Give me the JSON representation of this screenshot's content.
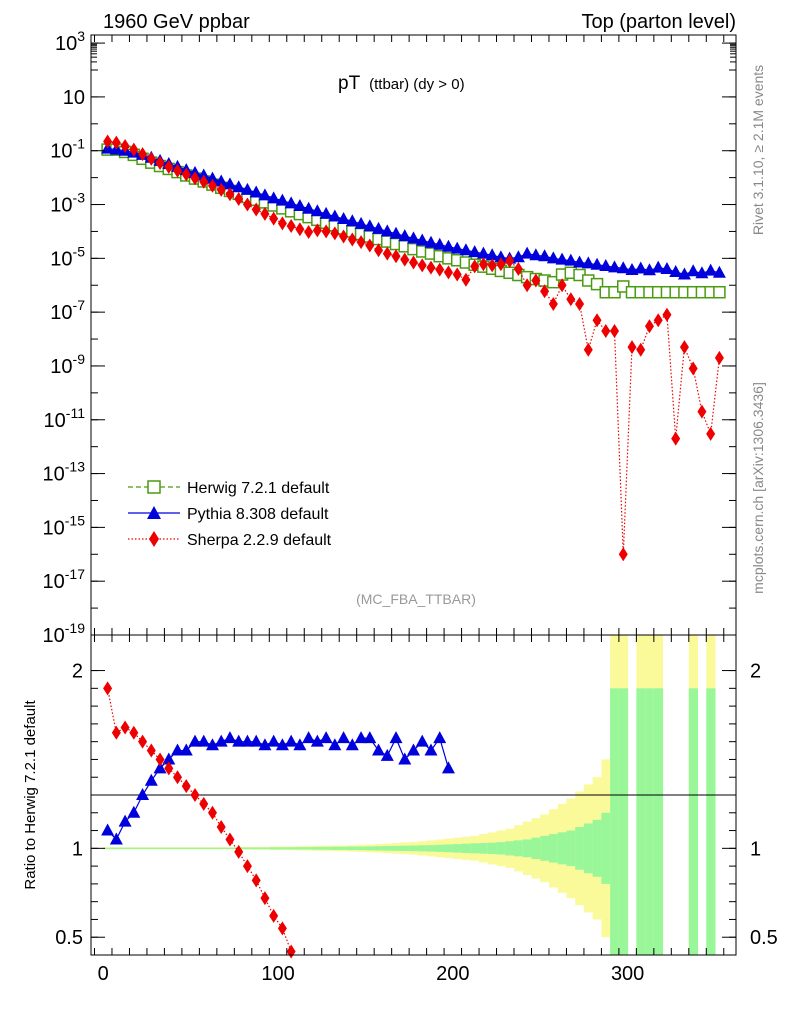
{
  "header": {
    "left": "1960 GeV ppbar",
    "right": "Top (parton level)"
  },
  "side_labels": {
    "rivet": "Rivet 3.1.10, ≥ 2.1M events",
    "mcplots": "mcplots.cern.ch [arXiv:1306.3436]"
  },
  "analysis_tag": "(MC_FBA_TTBAR)",
  "colors": {
    "herwig": "#4a9a12",
    "pythia": "#0000dd",
    "sherpa": "#ee0000",
    "band_inner": "#99f799",
    "band_outer": "#fafa9b"
  },
  "chart_data": [
    {
      "type": "line",
      "title": "pT (ttbar) (dy > 0)",
      "title_main": "pT",
      "title_sub": "(ttbar) (dy > 0)",
      "xlabel": "",
      "ylabel": "",
      "ylog": true,
      "xlim": [
        -7,
        362
      ],
      "ylim": [
        1e-19,
        2000
      ],
      "y_ticks": [
        "10^3",
        "10",
        "10^-1",
        "10^-3",
        "10^-5",
        "10^-7",
        "10^-9",
        "10^-11",
        "10^-13",
        "10^-15",
        "10^-17",
        "10^-19"
      ],
      "legend": "bottom-left",
      "series": [
        {
          "name": "Herwig 7.2.1 default",
          "x": [
            2.5,
            7.5,
            12.5,
            17.5,
            22.5,
            27.5,
            32.5,
            37.5,
            42.5,
            47.5,
            52.5,
            57.5,
            62.5,
            67.5,
            72.5,
            77.5,
            82.5,
            87.5,
            92.5,
            97.5,
            102.5,
            107.5,
            112.5,
            117.5,
            122.5,
            127.5,
            132.5,
            137.5,
            142.5,
            147.5,
            152.5,
            157.5,
            162.5,
            167.5,
            172.5,
            177.5,
            182.5,
            187.5,
            192.5,
            197.5,
            202.5,
            207.5,
            212.5,
            217.5,
            222.5,
            227.5,
            232.5,
            237.5,
            242.5,
            247.5,
            252.5,
            257.5,
            262.5,
            267.5,
            272.5,
            277.5,
            282.5,
            287.5,
            292.5,
            297.5,
            302.5,
            307.5,
            312.5,
            317.5,
            322.5,
            327.5,
            332.5,
            337.5,
            342.5,
            347.5,
            352.5
          ],
          "values": [
            0.11,
            0.11,
            0.09,
            0.07,
            0.05,
            0.036,
            0.027,
            0.021,
            0.016,
            0.012,
            0.0092,
            0.0072,
            0.0055,
            0.0042,
            0.0032,
            0.0025,
            0.0019,
            0.0015,
            0.0012,
            0.00092,
            0.00072,
            0.00056,
            0.00044,
            0.00034,
            0.00027,
            0.00021,
            0.00017,
            0.00013,
            0.0001,
            8e-05,
            6.5e-05,
            5.2e-05,
            4.2e-05,
            3.4e-05,
            2.8e-05,
            2.2e-05,
            1.8e-05,
            1.5e-05,
            1.2e-05,
            1e-05,
            8.5e-06,
            7e-06,
            5.8e-06,
            4.9e-06,
            4.1e-06,
            3.4e-06,
            2.9e-06,
            2.4e-06,
            2e-06,
            1.7e-06,
            1.5e-06,
            1.3e-06,
            2.5e-06,
            2.9e-06,
            2.4e-06,
            1.5e-06,
            1.1e-06,
            5.5e-07,
            5.5e-07,
            9e-07,
            5.5e-07,
            5.5e-07,
            5.5e-07,
            5.5e-07,
            5.5e-07,
            5.5e-07,
            5.5e-07,
            5.5e-07,
            5.5e-07,
            5.5e-07,
            5.5e-07
          ]
        },
        {
          "name": "Pythia 8.308 default",
          "x": [
            2.5,
            7.5,
            12.5,
            17.5,
            22.5,
            27.5,
            32.5,
            37.5,
            42.5,
            47.5,
            52.5,
            57.5,
            62.5,
            67.5,
            72.5,
            77.5,
            82.5,
            87.5,
            92.5,
            97.5,
            102.5,
            107.5,
            112.5,
            117.5,
            122.5,
            127.5,
            132.5,
            137.5,
            142.5,
            147.5,
            152.5,
            157.5,
            162.5,
            167.5,
            172.5,
            177.5,
            182.5,
            187.5,
            192.5,
            197.5,
            202.5,
            207.5,
            212.5,
            217.5,
            222.5,
            227.5,
            232.5,
            237.5,
            242.5,
            247.5,
            252.5,
            257.5,
            262.5,
            267.5,
            272.5,
            277.5,
            282.5,
            287.5,
            292.5,
            297.5,
            302.5,
            307.5,
            312.5,
            317.5,
            322.5,
            327.5,
            332.5,
            337.5,
            342.5,
            347.5,
            352.5
          ],
          "values": [
            0.12,
            0.11,
            0.1,
            0.085,
            0.07,
            0.055,
            0.042,
            0.032,
            0.025,
            0.019,
            0.015,
            0.012,
            0.0092,
            0.0072,
            0.0056,
            0.0044,
            0.0035,
            0.0028,
            0.0022,
            0.0017,
            0.0014,
            0.0011,
            0.00088,
            0.0007,
            0.00056,
            0.00045,
            0.00036,
            0.00029,
            0.00024,
            0.00019,
            0.000155,
            0.000125,
            0.0001,
            8.2e-05,
            6.7e-05,
            5.5e-05,
            4.6e-05,
            3.8e-05,
            3.2e-05,
            2.7e-05,
            2.3e-05,
            2e-05,
            1.7e-05,
            1.5e-05,
            1.3e-05,
            1.1e-05,
            9.8e-06,
            1.1e-05,
            1.5e-05,
            1.3e-05,
            1.2e-05,
            1e-05,
            9e-06,
            8.2e-06,
            7e-06,
            6.5e-06,
            5.8e-06,
            5.2e-06,
            4.6e-06,
            4.3e-06,
            3.7e-06,
            4.2e-06,
            3.6e-06,
            4.5e-06,
            4e-06,
            3.1e-06,
            2.5e-06,
            3.3e-06,
            2.8e-06,
            3.5e-06,
            2.9e-06
          ]
        },
        {
          "name": "Sherpa 2.2.9 default",
          "x": [
            2.5,
            7.5,
            12.5,
            17.5,
            22.5,
            27.5,
            32.5,
            37.5,
            42.5,
            47.5,
            52.5,
            57.5,
            62.5,
            67.5,
            72.5,
            77.5,
            82.5,
            87.5,
            92.5,
            97.5,
            102.5,
            107.5,
            112.5,
            117.5,
            122.5,
            127.5,
            132.5,
            137.5,
            142.5,
            147.5,
            152.5,
            157.5,
            162.5,
            167.5,
            172.5,
            177.5,
            182.5,
            187.5,
            192.5,
            197.5,
            202.5,
            207.5,
            212.5,
            217.5,
            222.5,
            227.5,
            232.5,
            237.5,
            242.5,
            247.5,
            252.5,
            257.5,
            262.5,
            267.5,
            272.5,
            277.5,
            282.5,
            287.5,
            292.5,
            297.5,
            302.5,
            307.5,
            312.5,
            317.5,
            322.5,
            327.5,
            332.5,
            337.5,
            342.5,
            347.5,
            352.5
          ],
          "values": [
            0.22,
            0.2,
            0.15,
            0.11,
            0.075,
            0.05,
            0.035,
            0.025,
            0.018,
            0.013,
            0.0095,
            0.007,
            0.005,
            0.0035,
            0.0024,
            0.0016,
            0.001,
            0.00065,
            0.00045,
            0.0003,
            0.0002,
            0.00016,
            0.00012,
            9.5e-05,
            0.00011,
            0.0001,
            8.5e-05,
            6.5e-05,
            5e-05,
            4e-05,
            3e-05,
            2e-05,
            1.5e-05,
            1.2e-05,
            9e-06,
            7e-06,
            5.5e-06,
            4.5e-06,
            3.8e-06,
            3e-06,
            2.5e-06,
            1.6e-06,
            5e-06,
            6e-06,
            5.5e-06,
            6e-06,
            8e-06,
            4e-06,
            1e-06,
            1.5e-06,
            6e-07,
            2e-07,
            1e-06,
            3e-07,
            2e-07,
            4e-09,
            5e-08,
            2e-08,
            2e-08,
            1e-16,
            5e-09,
            4e-09,
            3e-08,
            5e-08,
            8e-08,
            2e-12,
            5e-09,
            8e-10,
            2e-11,
            3e-12,
            2e-09
          ]
        }
      ]
    },
    {
      "type": "line",
      "ylabel": "Ratio to Herwig 7.2.1 default",
      "xlabel": "",
      "xlim": [
        -7,
        362
      ],
      "ylim": [
        0.4,
        2.2
      ],
      "y_ticks": [
        "0.5",
        "1",
        "2"
      ],
      "x_ticks": [
        "0",
        "100",
        "200",
        "300"
      ],
      "band_x": [
        2.5,
        7.5,
        12.5,
        17.5,
        22.5,
        27.5,
        32.5,
        37.5,
        42.5,
        47.5,
        52.5,
        57.5,
        62.5,
        67.5,
        72.5,
        77.5,
        82.5,
        87.5,
        92.5,
        97.5,
        102.5,
        107.5,
        112.5,
        117.5,
        122.5,
        127.5,
        132.5,
        137.5,
        142.5,
        147.5,
        152.5,
        157.5,
        162.5,
        167.5,
        172.5,
        177.5,
        182.5,
        187.5,
        192.5,
        197.5,
        202.5,
        207.5,
        212.5,
        217.5,
        222.5,
        227.5,
        232.5,
        237.5,
        242.5,
        247.5,
        252.5,
        257.5,
        262.5,
        267.5,
        272.5,
        277.5,
        282.5,
        287.5,
        292.5,
        297.5,
        302.5,
        307.5,
        312.5,
        317.5,
        322.5,
        327.5,
        332.5,
        337.5,
        342.5,
        347.5,
        352.5
      ],
      "band_inner": [
        0.004,
        0.004,
        0.004,
        0.004,
        0.004,
        0.004,
        0.004,
        0.004,
        0.004,
        0.004,
        0.004,
        0.004,
        0.004,
        0.004,
        0.004,
        0.005,
        0.005,
        0.005,
        0.005,
        0.006,
        0.006,
        0.006,
        0.007,
        0.007,
        0.008,
        0.008,
        0.009,
        0.009,
        0.01,
        0.01,
        0.011,
        0.012,
        0.013,
        0.014,
        0.015,
        0.016,
        0.017,
        0.018,
        0.02,
        0.022,
        0.024,
        0.026,
        0.028,
        0.03,
        0.032,
        0.035,
        0.04,
        0.045,
        0.05,
        0.06,
        0.07,
        0.08,
        0.09,
        0.1,
        0.12,
        0.14,
        0.16,
        0.2,
        0.9,
        0.9,
        0.0,
        0.9,
        0.9,
        0.9,
        0.0,
        0.0,
        0.0,
        0.9,
        0.0,
        0.9,
        0.0
      ],
      "band_outer": [
        0.006,
        0.006,
        0.006,
        0.006,
        0.006,
        0.006,
        0.006,
        0.006,
        0.006,
        0.006,
        0.006,
        0.006,
        0.006,
        0.006,
        0.006,
        0.008,
        0.008,
        0.008,
        0.008,
        0.01,
        0.01,
        0.01,
        0.012,
        0.012,
        0.014,
        0.015,
        0.016,
        0.017,
        0.018,
        0.02,
        0.022,
        0.024,
        0.027,
        0.03,
        0.033,
        0.036,
        0.04,
        0.045,
        0.05,
        0.055,
        0.06,
        0.065,
        0.07,
        0.08,
        0.09,
        0.1,
        0.11,
        0.13,
        0.15,
        0.17,
        0.19,
        0.22,
        0.25,
        0.28,
        0.32,
        0.36,
        0.4,
        0.5,
        1.5,
        1.5,
        0.0,
        1.5,
        1.5,
        1.5,
        0.0,
        0.0,
        0.0,
        1.5,
        0.0,
        1.5,
        0.0
      ],
      "series": [
        {
          "name": "Pythia 8.308 default",
          "x": [
            2.5,
            7.5,
            12.5,
            17.5,
            22.5,
            27.5,
            32.5,
            37.5,
            42.5,
            47.5,
            52.5,
            57.5,
            62.5,
            67.5,
            72.5,
            77.5,
            82.5,
            87.5,
            92.5,
            97.5,
            102.5,
            107.5,
            112.5,
            117.5,
            122.5,
            127.5,
            132.5,
            137.5,
            142.5,
            147.5,
            152.5,
            157.5,
            162.5,
            167.5,
            172.5,
            177.5,
            182.5,
            187.5,
            192.5,
            197.5
          ],
          "values": [
            1.1,
            1.05,
            1.15,
            1.2,
            1.3,
            1.38,
            1.45,
            1.5,
            1.55,
            1.55,
            1.6,
            1.6,
            1.58,
            1.6,
            1.62,
            1.6,
            1.6,
            1.6,
            1.58,
            1.6,
            1.58,
            1.6,
            1.58,
            1.62,
            1.6,
            1.62,
            1.58,
            1.62,
            1.58,
            1.62,
            1.62,
            1.55,
            1.52,
            1.62,
            1.5,
            1.55,
            1.6,
            1.55,
            1.62,
            1.45
          ]
        },
        {
          "name": "Sherpa 2.2.9 default",
          "x": [
            2.5,
            7.5,
            12.5,
            17.5,
            22.5,
            27.5,
            32.5,
            37.5,
            42.5,
            47.5,
            52.5,
            57.5,
            62.5,
            67.5,
            72.5,
            77.5,
            82.5,
            87.5,
            92.5,
            97.5,
            102.5,
            107.5
          ],
          "values": [
            1.9,
            1.65,
            1.68,
            1.65,
            1.6,
            1.55,
            1.5,
            1.45,
            1.4,
            1.35,
            1.3,
            1.25,
            1.2,
            1.12,
            1.05,
            0.98,
            0.9,
            0.82,
            0.72,
            0.62,
            0.55,
            0.42
          ]
        }
      ]
    }
  ]
}
